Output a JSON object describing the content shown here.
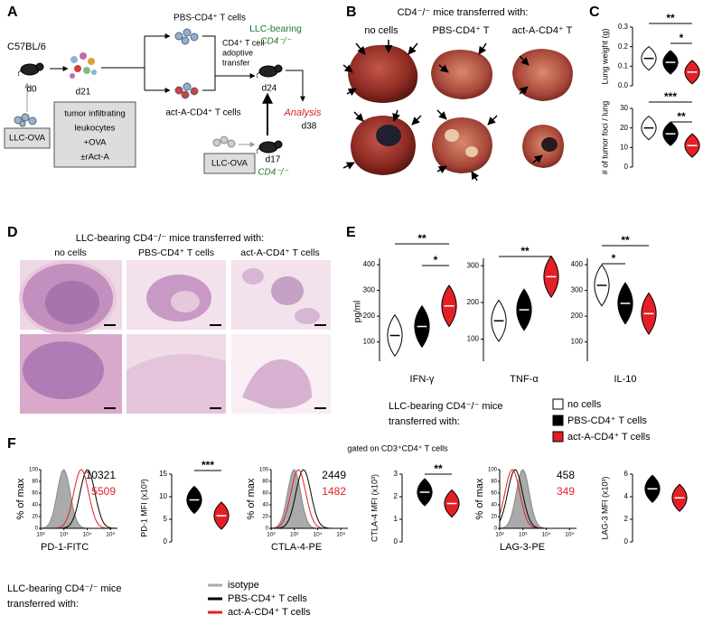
{
  "panels": {
    "A": {
      "letter": "A",
      "strain": "C57BL/6",
      "day0": "d0",
      "donor_tumor": "LLC-OVA",
      "day21": "d21",
      "culture": [
        "tumor infiltrating",
        "leukocytes",
        "+OVA",
        "±rAct-A"
      ],
      "pbs_cells": "PBS-CD4⁺ T cells",
      "act_cells": "act-A-CD4⁺ T cells",
      "transfer": [
        "CD4⁺ T cell",
        "adoptive",
        "transfer"
      ],
      "recipient": [
        "LLC-bearing",
        "CD4⁻/⁻"
      ],
      "day24": "d24",
      "analysis": "Analysis",
      "day38": "d38",
      "recipient_tumor": "LLC-OVA",
      "day17": "d17",
      "recipient_strain": "CD4⁻/⁻"
    },
    "B": {
      "letter": "B",
      "title": "CD4⁻/⁻ mice transferred with:",
      "columns": [
        "no cells",
        "PBS-CD4⁺ T",
        "act-A-CD4⁺ T"
      ]
    },
    "C": {
      "letter": "C"
    },
    "D": {
      "letter": "D",
      "title": "LLC-bearing CD4⁻/⁻ mice transferred with:",
      "columns": [
        "no cells",
        "PBS-CD4⁺ T cells",
        "act-A-CD4⁺ T cells"
      ]
    },
    "E": {
      "letter": "E",
      "ylabel": "pg/ml",
      "legend_title": [
        "LLC-bearing CD4⁻/⁻ mice",
        "transferred with:"
      ],
      "legend": [
        {
          "name": "no cells",
          "color": "#ffffff"
        },
        {
          "name": "PBS-CD4⁺ T cells",
          "color": "#000000"
        },
        {
          "name": "act-A-CD4⁺ T cells",
          "color": "#e41f26"
        }
      ]
    },
    "F": {
      "letter": "F",
      "gate": "gated on CD3⁺CD4⁺ T cells",
      "legend_title": [
        "LLC-bearing CD4⁻/⁻ mice",
        "transferred with:"
      ],
      "legend": [
        {
          "name": "isotype",
          "color": "#aaaaaa"
        },
        {
          "name": "PBS-CD4⁺ T cells",
          "color": "#000000"
        },
        {
          "name": "act-A-CD4⁺ T cells",
          "color": "#e41f26"
        }
      ]
    }
  },
  "chart_data": [
    {
      "type": "violin",
      "ylabel": "Lung weight (g)",
      "ylim": [
        0,
        0.3
      ],
      "yticks": [
        {
          "value": 0,
          "label": "0.0"
        },
        {
          "value": 0.1,
          "label": "0.1"
        },
        {
          "value": 0.2,
          "label": "0.2"
        },
        {
          "value": 0.3,
          "label": "0.3"
        }
      ],
      "values": [
        0.14,
        0.12,
        0.07
      ],
      "colors": [
        "#ffffff",
        "#000000",
        "#e41f26"
      ],
      "annotations": [
        "**",
        "*"
      ]
    },
    {
      "type": "violin",
      "ylabel": "# of tumor foci / lung",
      "ylim": [
        0,
        30
      ],
      "yticks": [
        0,
        10,
        20,
        30
      ],
      "values": [
        20,
        17,
        11
      ],
      "colors": [
        "#ffffff",
        "#000000",
        "#e41f26"
      ],
      "annotations": [
        "***",
        "**"
      ]
    },
    {
      "type": "violin",
      "xlabel": "IFN-γ",
      "ylim": [
        25,
        425
      ],
      "yticks": [
        100,
        200,
        300,
        400
      ],
      "values": [
        125,
        160,
        240
      ],
      "colors": [
        "#ffffff",
        "#000000",
        "#e41f26"
      ],
      "annotations": [
        "**",
        "*"
      ]
    },
    {
      "type": "violin",
      "xlabel": "TNF-α",
      "ylim": [
        40,
        320
      ],
      "yticks": [
        100,
        200,
        300
      ],
      "values": [
        150,
        180,
        270
      ],
      "colors": [
        "#ffffff",
        "#000000",
        "#e41f26"
      ],
      "annotations": [
        "**"
      ]
    },
    {
      "type": "violin",
      "xlabel": "IL-10",
      "ylim": [
        25,
        425
      ],
      "yticks": [
        100,
        200,
        300,
        400
      ],
      "values": [
        320,
        250,
        210
      ],
      "colors": [
        "#ffffff",
        "#000000",
        "#e41f26"
      ],
      "annotations": [
        "*",
        "**"
      ]
    },
    {
      "type": "flow",
      "ylabel": "% of max",
      "xlabel": "PD-1-FITC",
      "ylim": [
        0,
        100
      ],
      "yticks": [
        0,
        20,
        40,
        60,
        80,
        100
      ],
      "xscale": "log",
      "xlim": [
        100,
        200000
      ],
      "xticks": [
        {
          "value": 100,
          "label": "10²"
        },
        {
          "value": 1000,
          "label": "10³"
        },
        {
          "value": 10000,
          "label": "10⁴"
        },
        {
          "value": 100000,
          "label": "10⁵"
        }
      ],
      "mfi": [
        10321,
        5509
      ]
    },
    {
      "type": "violin",
      "ylabel": "PD-1 MFI (x10³)",
      "ylim": [
        0,
        15
      ],
      "yticks": [
        0,
        5,
        10,
        15
      ],
      "values": [
        9.3,
        5.8
      ],
      "colors": [
        "#000000",
        "#e41f26"
      ],
      "annotations": [
        "***"
      ]
    },
    {
      "type": "flow",
      "ylabel": "% of max",
      "xlabel": "CTLA-4-PE",
      "ylim": [
        0,
        100
      ],
      "yticks": [
        0,
        20,
        40,
        60,
        80,
        100
      ],
      "xscale": "log",
      "xlim": [
        100,
        200000
      ],
      "xticks": [
        {
          "value": 100,
          "label": "10²"
        },
        {
          "value": 1000,
          "label": "10³"
        },
        {
          "value": 10000,
          "label": "10⁴"
        },
        {
          "value": 100000,
          "label": "10⁵"
        }
      ],
      "mfi": [
        2449,
        1482
      ]
    },
    {
      "type": "violin",
      "ylabel": "CTLA-4 MFI (x10³)",
      "ylim": [
        0,
        3
      ],
      "yticks": [
        0,
        1,
        2,
        3
      ],
      "values": [
        2.2,
        1.7
      ],
      "colors": [
        "#000000",
        "#e41f26"
      ],
      "annotations": [
        "**"
      ]
    },
    {
      "type": "flow",
      "ylabel": "% of max",
      "xlabel": "LAG-3-PE",
      "ylim": [
        0,
        100
      ],
      "yticks": [
        0,
        20,
        40,
        60,
        80,
        100
      ],
      "xscale": "log",
      "xlim": [
        100,
        200000
      ],
      "xticks": [
        {
          "value": 100,
          "label": "10²"
        },
        {
          "value": 1000,
          "label": "10³"
        },
        {
          "value": 10000,
          "label": "10⁴"
        },
        {
          "value": 100000,
          "label": "10⁵"
        }
      ],
      "mfi": [
        458,
        349
      ]
    },
    {
      "type": "violin",
      "ylabel": "LAG-3 MFI (x10³)",
      "ylim": [
        0,
        6
      ],
      "yticks": [
        0,
        2,
        4,
        6
      ],
      "values": [
        4.7,
        3.9
      ],
      "colors": [
        "#000000",
        "#e41f26"
      ],
      "annotations": []
    }
  ]
}
